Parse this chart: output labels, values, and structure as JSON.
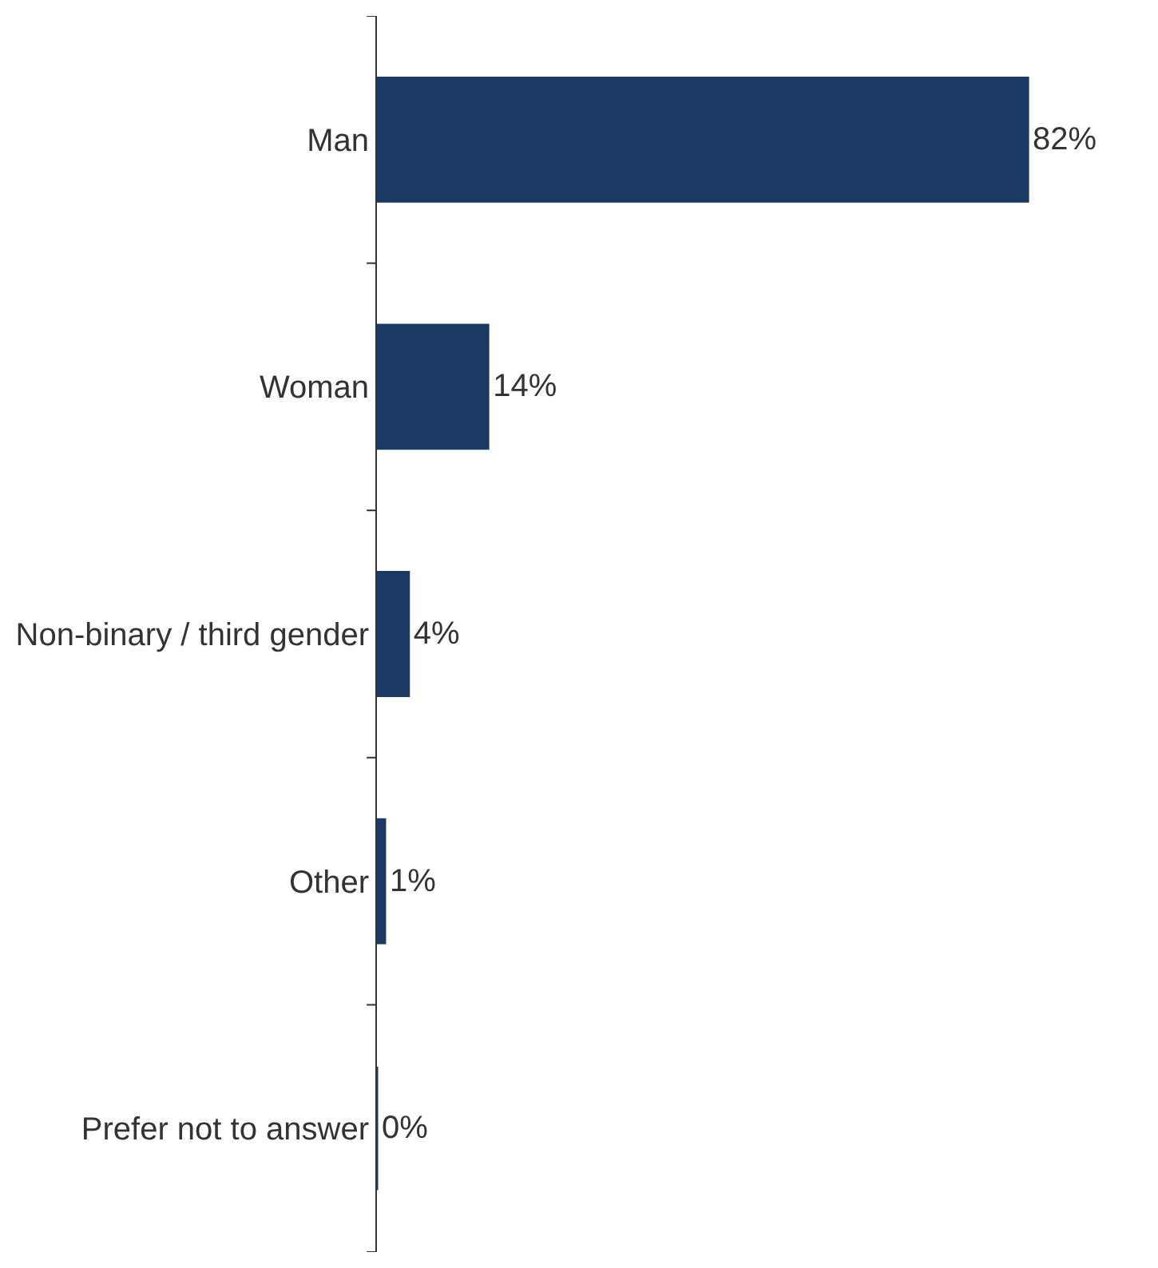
{
  "chart_data": {
    "type": "bar",
    "orientation": "horizontal",
    "categories": [
      "Man",
      "Woman",
      "Non-binary / third gender",
      "Other",
      "Prefer not to answer"
    ],
    "values": [
      82,
      14,
      4,
      1,
      0
    ],
    "value_labels": [
      "82%",
      "14%",
      "4%",
      "1%",
      "0%"
    ],
    "color": "#1a3a64",
    "tick_labels": "y",
    "legend": false
  }
}
